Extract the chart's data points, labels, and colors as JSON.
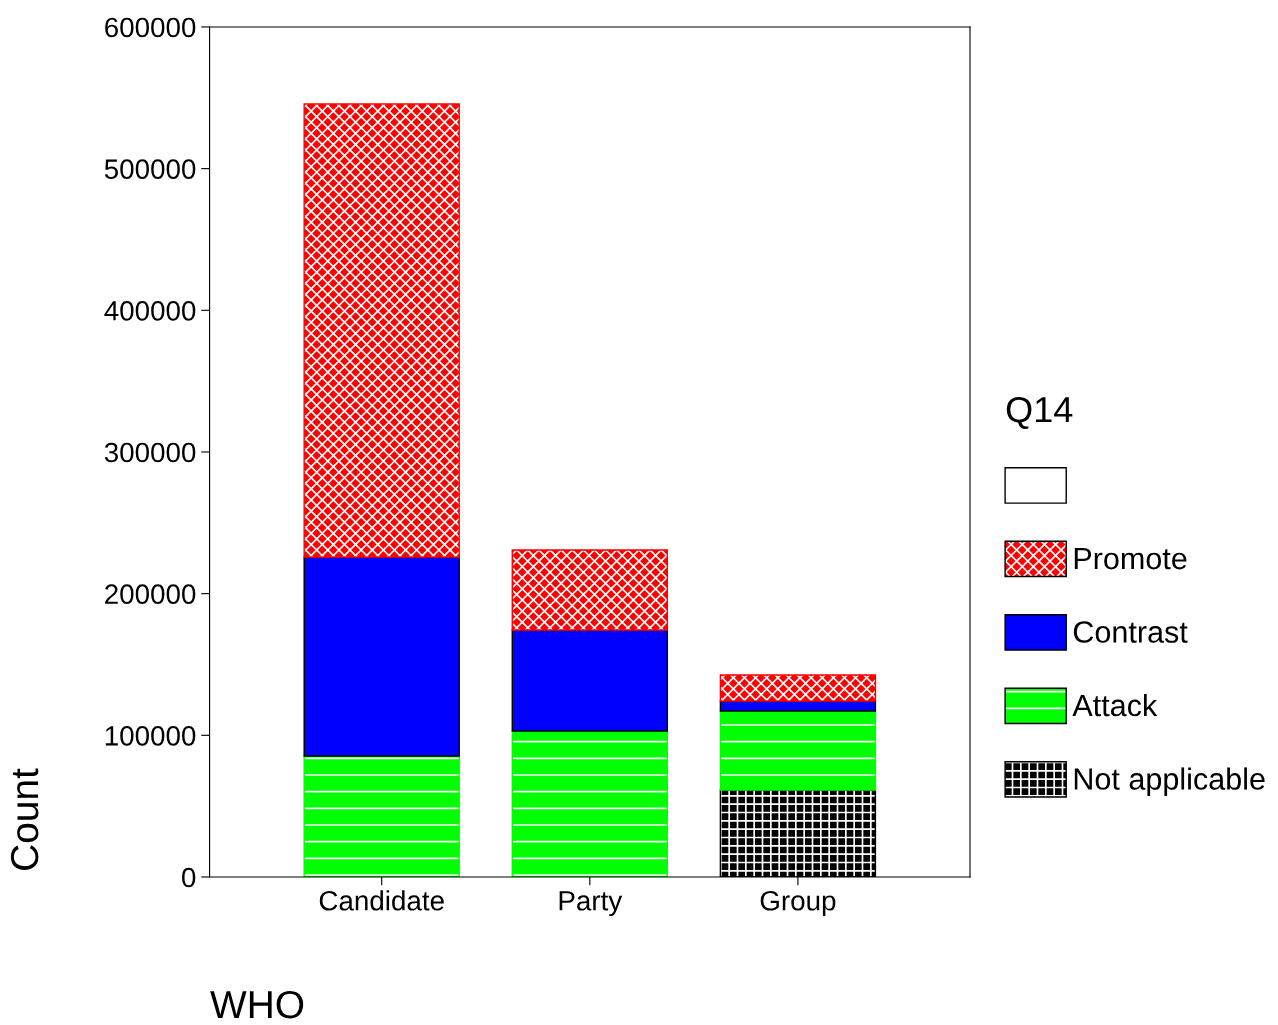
{
  "chart_data": {
    "type": "bar",
    "stacked": true,
    "xlabel": "WHO",
    "ylabel": "Count",
    "legend_title": "Q14",
    "legend": "right",
    "categories": [
      "Candidate",
      "Party",
      "Group"
    ],
    "series": [
      {
        "name": "Not applicable",
        "color": "#000000",
        "values": [
          null,
          null,
          61400
        ]
      },
      {
        "name": "Attack",
        "color": "#00ff00",
        "values": [
          85400,
          103000,
          55800
        ]
      },
      {
        "name": "Contrast",
        "color": "#0000ff",
        "values": [
          140500,
          71300,
          7000
        ]
      },
      {
        "name": "Promote",
        "color": "#ff0000",
        "values": [
          319700,
          56500,
          18400
        ]
      },
      {
        "name": null,
        "color": "#ffffff",
        "values": [
          null,
          null,
          null
        ]
      }
    ],
    "ylim": [
      0,
      600000
    ],
    "yticks": [
      0,
      100000,
      200000,
      300000,
      400000,
      500000,
      600000
    ],
    "grid": false
  }
}
